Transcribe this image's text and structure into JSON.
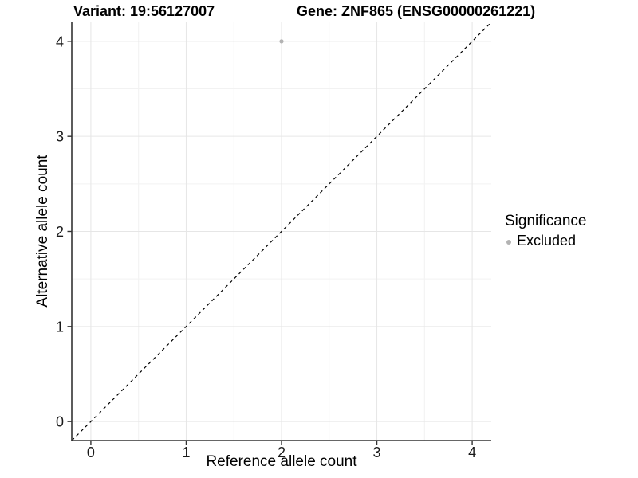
{
  "titles": {
    "left": "Variant: 19:56127007",
    "right": "Gene: ZNF865 (ENSG00000261221)"
  },
  "chart_data": {
    "type": "scatter",
    "title_left": "Variant: 19:56127007",
    "title_right": "Gene: ZNF865 (ENSG00000261221)",
    "xlabel": "Reference allele count",
    "ylabel": "Alternative allele count",
    "xlim": [
      -0.2,
      4.2
    ],
    "ylim": [
      -0.2,
      4.2
    ],
    "x_ticks": [
      0,
      1,
      2,
      3,
      4
    ],
    "x_tick_labels": [
      "0",
      "1",
      "2",
      "3",
      "4"
    ],
    "y_ticks": [
      0,
      1,
      2,
      3,
      4
    ],
    "y_tick_labels": [
      "0",
      "1",
      "2",
      "3",
      "4"
    ],
    "x_minor_ticks": [
      0.5,
      1.5,
      2.5,
      3.5
    ],
    "y_minor_ticks": [
      0.5,
      1.5,
      2.5,
      3.5
    ],
    "grid": "major-and-minor",
    "points": [
      {
        "x": 2,
        "y": 4,
        "series": "Excluded"
      }
    ],
    "identity_line": {
      "type": "abline",
      "slope": 1,
      "intercept": 0,
      "style": "dashed",
      "from": [
        -0.2,
        -0.2
      ],
      "to": [
        4.2,
        4.2
      ],
      "color": "#000000"
    },
    "legend": {
      "title": "Significance",
      "position": "right",
      "items": [
        {
          "label": "Excluded",
          "color": "#b3b3b3"
        }
      ]
    },
    "colors": {
      "point": "#b3b3b3",
      "grid_major": "#e6e6e6",
      "grid_minor": "#f2f2f2",
      "axis_line": "#333333",
      "tick_label": "#1a1a1a"
    }
  }
}
